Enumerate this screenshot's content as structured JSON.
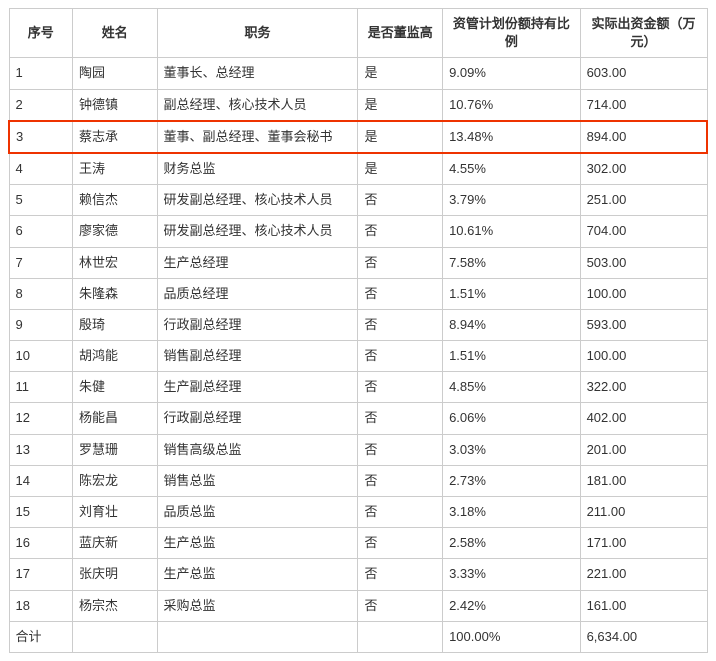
{
  "table": {
    "columns": [
      "序号",
      "姓名",
      "职务",
      "是否董监高",
      "资管计划份额持有比例",
      "实际出资金额（万元）"
    ],
    "highlight_index": 2,
    "highlight_border_color": "#e30",
    "rows": [
      [
        "1",
        "陶园",
        "董事长、总经理",
        "是",
        "9.09%",
        "603.00"
      ],
      [
        "2",
        "钟德镇",
        "副总经理、核心技术人员",
        "是",
        "10.76%",
        "714.00"
      ],
      [
        "3",
        "蔡志承",
        "董事、副总经理、董事会秘书",
        "是",
        "13.48%",
        "894.00"
      ],
      [
        "4",
        "王涛",
        "财务总监",
        "是",
        "4.55%",
        "302.00"
      ],
      [
        "5",
        "赖信杰",
        "研发副总经理、核心技术人员",
        "否",
        "3.79%",
        "251.00"
      ],
      [
        "6",
        "廖家德",
        "研发副总经理、核心技术人员",
        "否",
        "10.61%",
        "704.00"
      ],
      [
        "7",
        "林世宏",
        "生产总经理",
        "否",
        "7.58%",
        "503.00"
      ],
      [
        "8",
        "朱隆森",
        "品质总经理",
        "否",
        "1.51%",
        "100.00"
      ],
      [
        "9",
        "殷琦",
        "行政副总经理",
        "否",
        "8.94%",
        "593.00"
      ],
      [
        "10",
        "胡鸿能",
        "销售副总经理",
        "否",
        "1.51%",
        "100.00"
      ],
      [
        "11",
        "朱健",
        "生产副总经理",
        "否",
        "4.85%",
        "322.00"
      ],
      [
        "12",
        "杨能昌",
        "行政副总经理",
        "否",
        "6.06%",
        "402.00"
      ],
      [
        "13",
        "罗慧珊",
        "销售高级总监",
        "否",
        "3.03%",
        "201.00"
      ],
      [
        "14",
        "陈宏龙",
        "销售总监",
        "否",
        "2.73%",
        "181.00"
      ],
      [
        "15",
        "刘育壮",
        "品质总监",
        "否",
        "3.18%",
        "211.00"
      ],
      [
        "16",
        "蓝庆新",
        "生产总监",
        "否",
        "2.58%",
        "171.00"
      ],
      [
        "17",
        "张庆明",
        "生产总监",
        "否",
        "3.33%",
        "221.00"
      ],
      [
        "18",
        "杨宗杰",
        "采购总监",
        "否",
        "2.42%",
        "161.00"
      ]
    ],
    "total": [
      "合计",
      "",
      "",
      "",
      "100.00%",
      "6,634.00"
    ]
  }
}
